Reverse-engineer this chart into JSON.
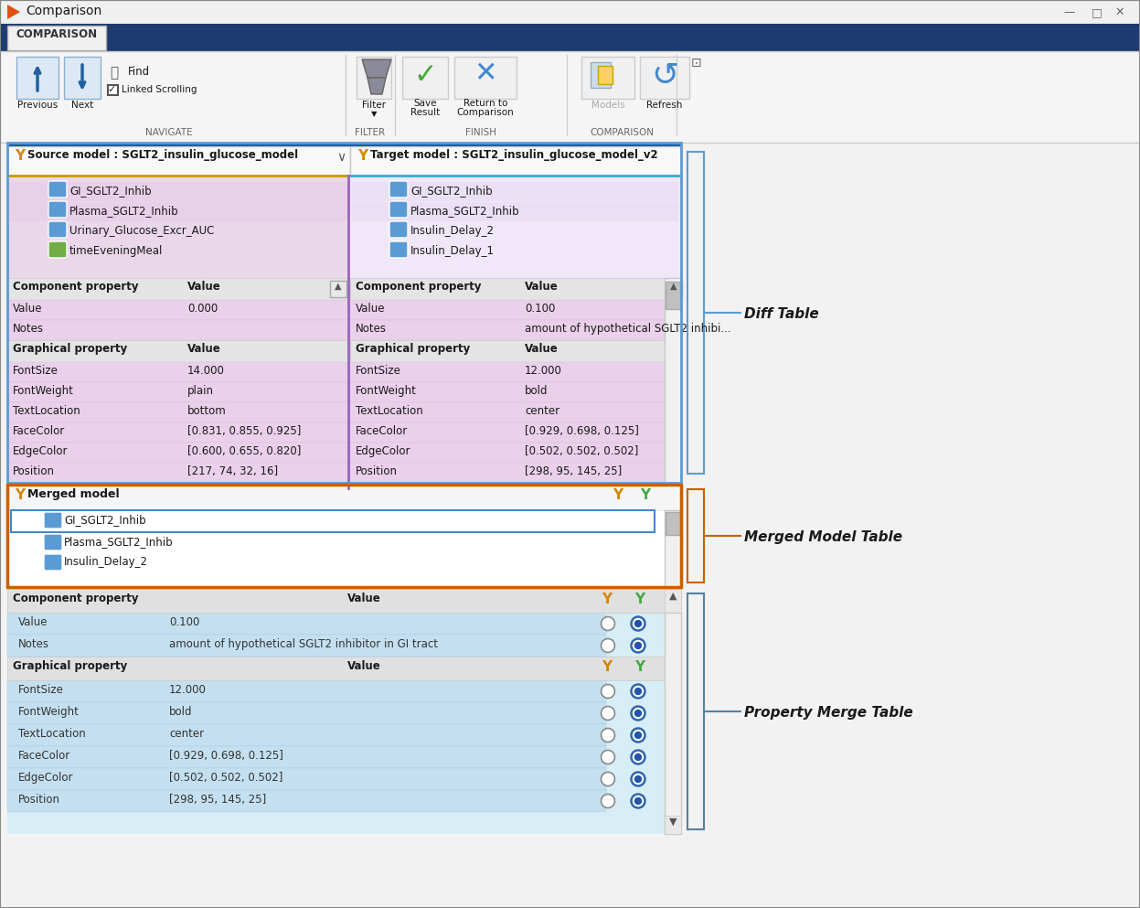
{
  "title_bar": "Comparison",
  "tab_label": "COMPARISON",
  "source_header": "Source model : SGLT2_insulin_glucose_model",
  "target_header": "Target model : SGLT2_insulin_glucose_model_v2",
  "source_items": [
    "GI_SGLT2_Inhib",
    "Plasma_SGLT2_Inhib",
    "Urinary_Glucose_Excr_AUC",
    "timeEveningMeal"
  ],
  "target_items": [
    "GI_SGLT2_Inhib",
    "Plasma_SGLT2_Inhib",
    "Insulin_Delay_2",
    "Insulin_Delay_1"
  ],
  "source_comp_props": [
    [
      "Value",
      "0.000"
    ],
    [
      "Notes",
      ""
    ]
  ],
  "target_comp_props": [
    [
      "Value",
      "0.100"
    ],
    [
      "Notes",
      "amount of hypothetical SGLT2 inhibi..."
    ]
  ],
  "source_graph_props": [
    [
      "FontSize",
      "14.000"
    ],
    [
      "FontWeight",
      "plain"
    ],
    [
      "TextLocation",
      "bottom"
    ],
    [
      "FaceColor",
      "[0.831, 0.855, 0.925]"
    ],
    [
      "EdgeColor",
      "[0.600, 0.655, 0.820]"
    ],
    [
      "Position",
      "[217, 74, 32, 16]"
    ]
  ],
  "target_graph_props": [
    [
      "FontSize",
      "12.000"
    ],
    [
      "FontWeight",
      "bold"
    ],
    [
      "TextLocation",
      "center"
    ],
    [
      "FaceColor",
      "[0.929, 0.698, 0.125]"
    ],
    [
      "EdgeColor",
      "[0.502, 0.502, 0.502]"
    ],
    [
      "Position",
      "[298, 95, 145, 25]"
    ]
  ],
  "merged_model_items": [
    "GI_SGLT2_Inhib",
    "Plasma_SGLT2_Inhib",
    "Insulin_Delay_2"
  ],
  "merge_comp_props": [
    [
      "Value",
      "0.100"
    ],
    [
      "Notes",
      "amount of hypothetical SGLT2 inhibitor in GI tract"
    ]
  ],
  "merge_graph_props": [
    [
      "FontSize",
      "12.000"
    ],
    [
      "FontWeight",
      "bold"
    ],
    [
      "TextLocation",
      "center"
    ],
    [
      "FaceColor",
      "[0.929, 0.698, 0.125]"
    ],
    [
      "EdgeColor",
      "[0.502, 0.502, 0.502]"
    ],
    [
      "Position",
      "[298, 95, 145, 25]"
    ]
  ],
  "label_annotations": [
    "Diff Table",
    "Merged Model Table",
    "Property Merge Table"
  ],
  "source_item_colors": [
    "#5b9bd5",
    "#5b9bd5",
    "#5b9bd5",
    "#70ad47"
  ],
  "target_item_colors": [
    "#5b9bd5",
    "#5b9bd5",
    "#5b9bd5",
    "#5b9bd5"
  ]
}
